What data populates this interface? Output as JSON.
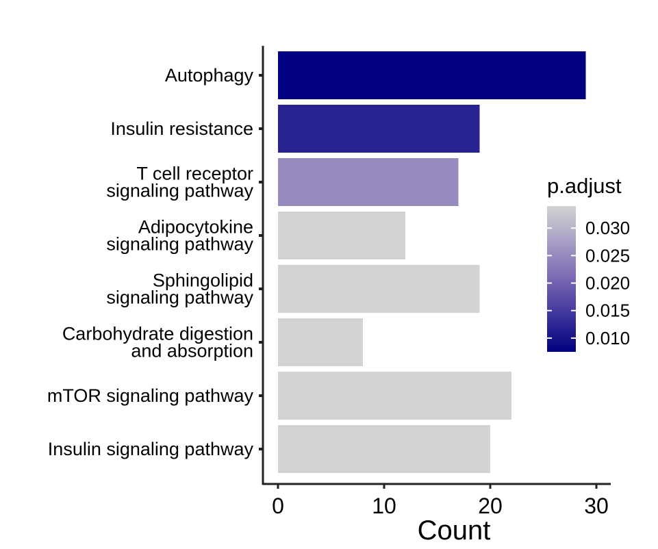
{
  "chart_data": {
    "type": "bar",
    "orientation": "horizontal",
    "title": "",
    "xlabel": "Count",
    "ylabel": "",
    "xlim": [
      0,
      30
    ],
    "x_ticks": [
      0,
      10,
      20,
      30
    ],
    "grid": false,
    "categories": [
      "Autophagy",
      "Insulin resistance",
      "T cell receptor\nsignaling pathway",
      "Adipocytokine\nsignaling pathway",
      "Sphingolipid\nsignaling pathway",
      "Carbohydrate digestion\nand absorption",
      "mTOR signaling pathway",
      "Insulin signaling pathway"
    ],
    "values": [
      29,
      19,
      17,
      12,
      19,
      8,
      22,
      20
    ],
    "p_adjust": [
      0.0075,
      0.012,
      0.025,
      0.034,
      0.034,
      0.034,
      0.034,
      0.034
    ],
    "legend": {
      "title": "p.adjust",
      "placement": "right",
      "ticks": [
        0.03,
        0.025,
        0.02,
        0.015,
        0.01
      ],
      "tick_labels": [
        "0.030",
        "0.025",
        "0.020",
        "0.015",
        "0.010"
      ],
      "range": [
        0.0075,
        0.034
      ],
      "color_low": "#000080",
      "color_high": "#d3d3d3"
    }
  }
}
